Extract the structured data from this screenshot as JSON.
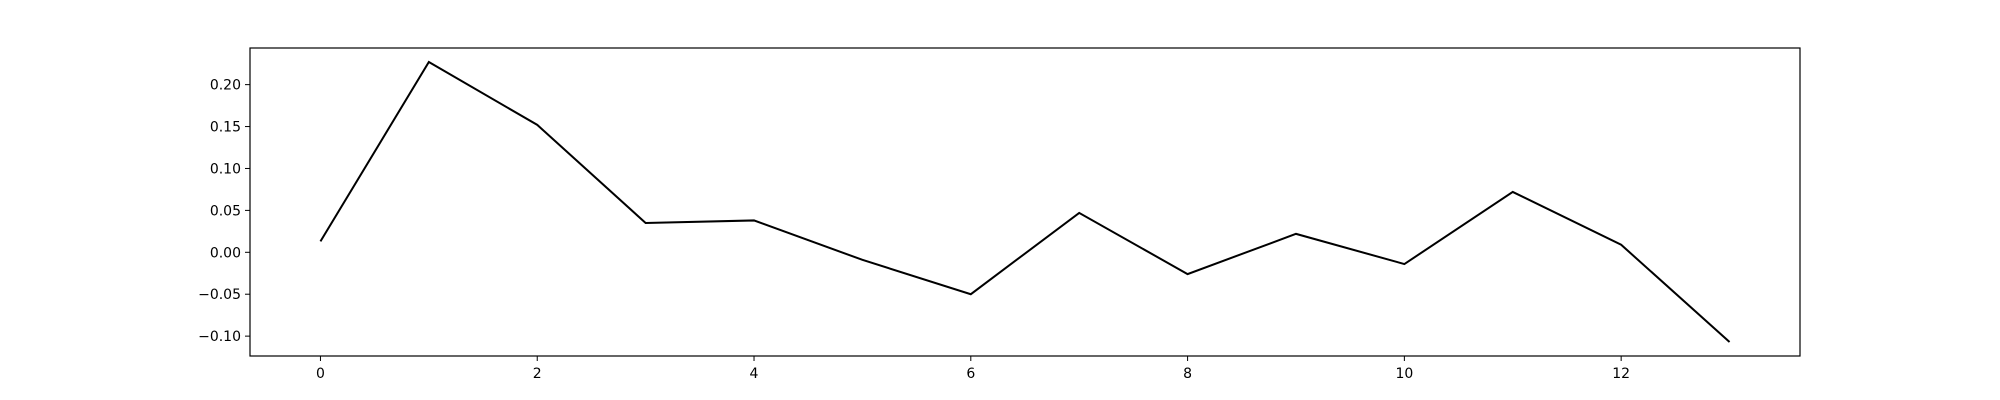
{
  "chart_data": {
    "type": "line",
    "x": [
      0,
      1,
      2,
      3,
      4,
      5,
      6,
      7,
      8,
      9,
      10,
      11,
      12,
      13
    ],
    "series": [
      {
        "values": [
          0.013,
          0.227,
          0.152,
          0.035,
          0.038,
          -0.009,
          -0.05,
          0.047,
          -0.026,
          0.022,
          -0.014,
          0.072,
          0.009,
          -0.107
        ],
        "color": "#000000"
      }
    ],
    "x_ticks": [
      0,
      2,
      4,
      6,
      8,
      10,
      12
    ],
    "x_tick_labels": [
      "0",
      "2",
      "4",
      "6",
      "8",
      "10",
      "12"
    ],
    "y_ticks": [
      -0.1,
      -0.05,
      0.0,
      0.05,
      0.1,
      0.15,
      0.2
    ],
    "y_tick_labels": [
      "−0.10",
      "−0.05",
      "0.00",
      "0.05",
      "0.10",
      "0.15",
      "0.20"
    ],
    "xlim": [
      -0.65,
      13.65
    ],
    "ylim": [
      -0.1237,
      0.2437
    ],
    "title": "",
    "xlabel": "",
    "ylabel": "",
    "grid": false,
    "legend": false
  }
}
